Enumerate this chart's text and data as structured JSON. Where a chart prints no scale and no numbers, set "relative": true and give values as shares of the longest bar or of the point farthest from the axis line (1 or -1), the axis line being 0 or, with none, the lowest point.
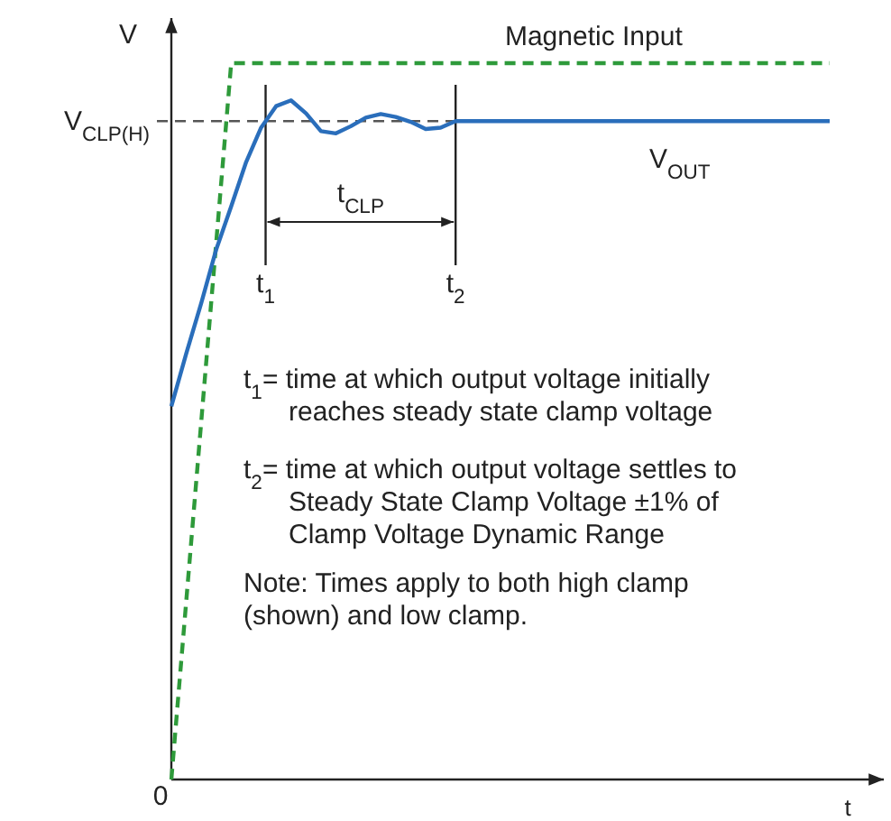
{
  "chart_data": {
    "type": "line",
    "relative": true,
    "xlabel": "t",
    "ylabel": "V",
    "categories": [
      null,
      null,
      null,
      null,
      null,
      null,
      null,
      null,
      null,
      null,
      null,
      null,
      null,
      null,
      null,
      null,
      null,
      null,
      null,
      null,
      null,
      null,
      null,
      null,
      null,
      null,
      null,
      null,
      null,
      null,
      null,
      null,
      null,
      null,
      null,
      null,
      null,
      null,
      null,
      null,
      null,
      null,
      null,
      null,
      null
    ],
    "series": [
      {
        "name": "Magnetic Input",
        "color": "#2e9a3a",
        "line_style": "dashed",
        "values": [
          0,
          0.25,
          0.5,
          0.75,
          1,
          1,
          1,
          1,
          1,
          1,
          1,
          1,
          1,
          1,
          1,
          1,
          1,
          1,
          1,
          1,
          1,
          1,
          1,
          1,
          1,
          1,
          1,
          1,
          1,
          1,
          1,
          1,
          1,
          1,
          1,
          1,
          1,
          1,
          1,
          1,
          1,
          1,
          1,
          1,
          1
        ]
      },
      {
        "name": "V$_{OUT}$",
        "color": "#2a6ebb",
        "line_style": "solid",
        "values": [
          0.521,
          0.595,
          0.665,
          0.74,
          0.8,
          0.862,
          0.91,
          0.94,
          0.948,
          0.93,
          0.905,
          0.902,
          0.912,
          0.924,
          0.929,
          0.925,
          0.918,
          0.908,
          0.91,
          0.919,
          0.919,
          0.919,
          0.919,
          0.919,
          0.919,
          0.919,
          0.919,
          0.919,
          0.919,
          0.919,
          0.919,
          0.919,
          0.919,
          0.919,
          0.919,
          0.919,
          0.919,
          0.919,
          0.919,
          0.919,
          0.919,
          0.919,
          0.919,
          0.919,
          0.919
        ]
      }
    ],
    "ref_lines": [
      {
        "axis": "y",
        "value": 0.919,
        "label": "V$_{CLP(H)}$",
        "color": "#555555",
        "line_style": "dashed"
      }
    ],
    "annotations": [
      "t$_{CLP}$",
      "t$_{1}$= time at which output voltage initially\nreaches steady state clamp voltage",
      "t$_{2}$= time at which output voltage settles to\nSteady State Clamp Voltage ±1% of\nClamp Voltage Dynamic Range",
      "Note: Times apply to both high clamp\n(shown) and low clamp.",
      "0",
      "t$_{1}$",
      "t$_{2}$"
    ]
  }
}
